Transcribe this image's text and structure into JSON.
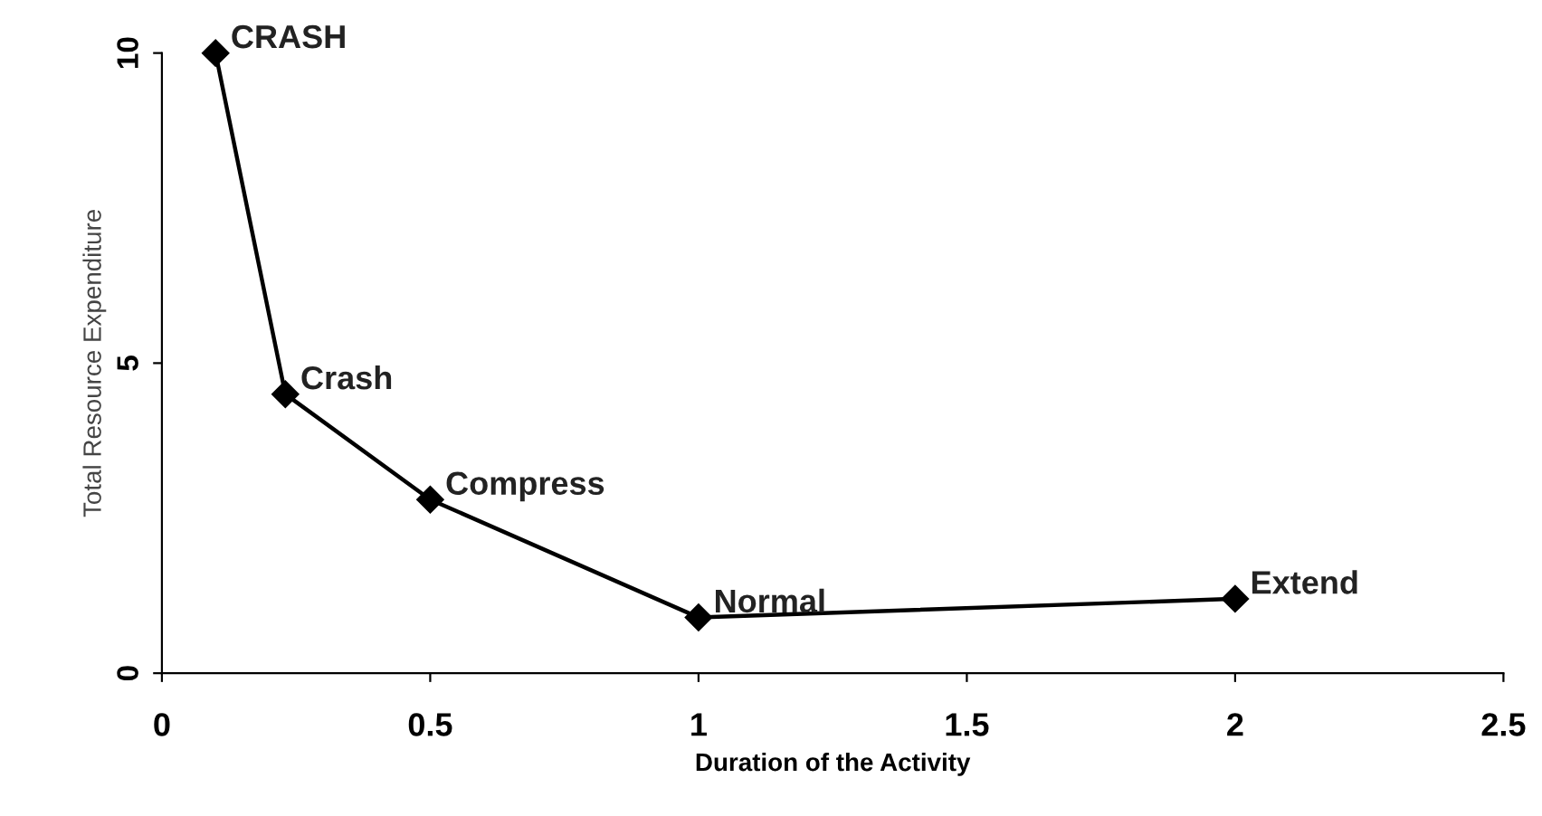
{
  "chart_data": {
    "type": "line",
    "xlabel": "Duration of the Activity",
    "ylabel": "Total Resource Expenditure",
    "x": [
      0.1,
      0.23,
      0.5,
      1,
      2
    ],
    "series": [
      {
        "color": "#000000",
        "values": [
          10,
          4.5,
          2.8,
          0.9,
          1.2
        ]
      }
    ],
    "marker": "diamond",
    "line_style": "solid",
    "grid": false,
    "legend": false,
    "xlim": [
      0,
      2.5
    ],
    "xticks": [
      0,
      0.5,
      1,
      1.5,
      2,
      2.5
    ],
    "ylim": [
      0,
      10
    ],
    "yticks": [
      0,
      5,
      10
    ],
    "annotations": [
      {
        "text": "CRASH",
        "x": 0.1,
        "y": 10
      },
      {
        "text": "Crash",
        "x": 0.23,
        "y": 4.5
      },
      {
        "text": "Compress",
        "x": 0.5,
        "y": 2.8
      },
      {
        "text": "Normal",
        "x": 1,
        "y": 0.9
      },
      {
        "text": "Extend",
        "x": 2,
        "y": 1.2
      }
    ]
  }
}
